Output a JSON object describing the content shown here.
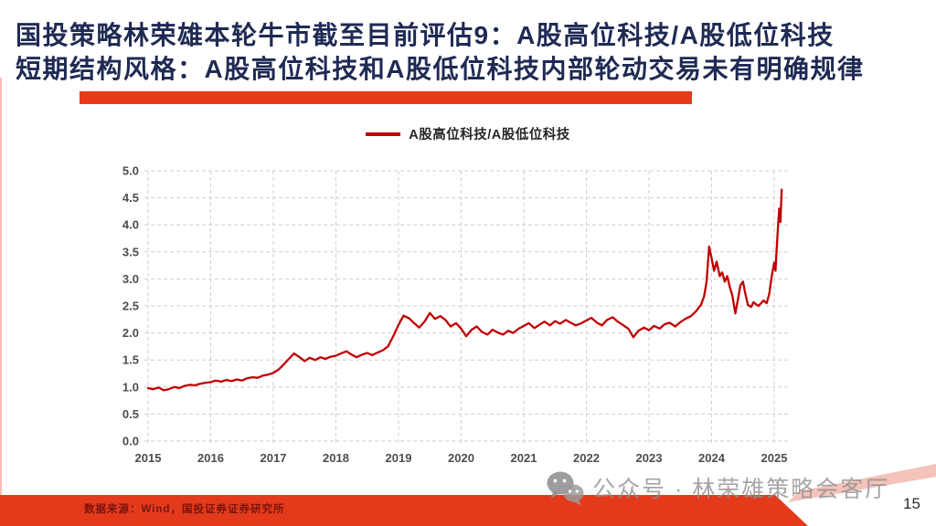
{
  "slide": {
    "title_line1": "国投策略林荣雄本轮牛市截至目前评估9：A股高位科技/A股低位科技",
    "title_line2": "短期结构风格：A股高位科技和A股低位科技内部轮动交易未有明确规律",
    "source_note": "数据来源：Wind，国投证券证券研究所",
    "watermark_text": "公众号 · 林荣雄策略会客厅",
    "page_number": "15",
    "colors": {
      "title_navy": "#1f2a54",
      "accent_red": "#e8391c",
      "footer_red": "#e43a1c",
      "footer_pink": "#f3c0b6",
      "line_red": "#c00000",
      "grid_gray": "#cfcfcf",
      "tick_gray": "#4d4d4d",
      "source_maroon": "#7a140c",
      "watermark_gray": "#8f8f8f"
    }
  },
  "chart_data": {
    "type": "line",
    "title": "",
    "xlabel": "",
    "ylabel": "",
    "xlim": [
      2015,
      2025.2
    ],
    "ylim": [
      0,
      5
    ],
    "x_ticks": [
      2015,
      2016,
      2017,
      2018,
      2019,
      2020,
      2021,
      2022,
      2023,
      2024,
      2025
    ],
    "y_ticks": [
      0,
      0.5,
      1,
      1.5,
      2,
      2.5,
      3,
      3.5,
      4,
      4.5,
      5
    ],
    "grid": "dashed",
    "legend_position": "top-center",
    "series": [
      {
        "name": "A股高位科技/A股低位科技",
        "color": "#c00000",
        "x": [
          2015.0,
          2015.08,
          2015.17,
          2015.25,
          2015.33,
          2015.42,
          2015.5,
          2015.58,
          2015.67,
          2015.75,
          2015.83,
          2015.92,
          2016.0,
          2016.08,
          2016.17,
          2016.25,
          2016.33,
          2016.42,
          2016.5,
          2016.58,
          2016.67,
          2016.75,
          2016.83,
          2016.92,
          2017.0,
          2017.08,
          2017.17,
          2017.25,
          2017.33,
          2017.42,
          2017.5,
          2017.58,
          2017.67,
          2017.75,
          2017.83,
          2017.92,
          2018.0,
          2018.08,
          2018.17,
          2018.25,
          2018.33,
          2018.42,
          2018.5,
          2018.58,
          2018.67,
          2018.75,
          2018.83,
          2018.92,
          2019.0,
          2019.08,
          2019.17,
          2019.25,
          2019.33,
          2019.42,
          2019.5,
          2019.58,
          2019.67,
          2019.75,
          2019.83,
          2019.92,
          2020.0,
          2020.08,
          2020.17,
          2020.25,
          2020.33,
          2020.42,
          2020.5,
          2020.58,
          2020.67,
          2020.75,
          2020.83,
          2020.92,
          2021.0,
          2021.08,
          2021.17,
          2021.25,
          2021.33,
          2021.42,
          2021.5,
          2021.58,
          2021.67,
          2021.75,
          2021.83,
          2021.92,
          2022.0,
          2022.08,
          2022.17,
          2022.25,
          2022.33,
          2022.42,
          2022.5,
          2022.58,
          2022.67,
          2022.75,
          2022.83,
          2022.92,
          2023.0,
          2023.08,
          2023.17,
          2023.25,
          2023.33,
          2023.42,
          2023.5,
          2023.58,
          2023.67,
          2023.75,
          2023.83,
          2023.88,
          2023.92,
          2023.96,
          2024.0,
          2024.04,
          2024.08,
          2024.13,
          2024.17,
          2024.21,
          2024.25,
          2024.29,
          2024.33,
          2024.38,
          2024.42,
          2024.46,
          2024.5,
          2024.54,
          2024.58,
          2024.63,
          2024.67,
          2024.71,
          2024.75,
          2024.79,
          2024.83,
          2024.88,
          2024.92,
          2024.96,
          2025.0,
          2025.02,
          2025.04,
          2025.06,
          2025.08,
          2025.1,
          2025.12
        ],
        "values": [
          0.98,
          0.96,
          0.99,
          0.94,
          0.96,
          1.0,
          0.98,
          1.02,
          1.04,
          1.03,
          1.06,
          1.08,
          1.09,
          1.12,
          1.1,
          1.13,
          1.11,
          1.14,
          1.12,
          1.16,
          1.18,
          1.17,
          1.21,
          1.23,
          1.26,
          1.32,
          1.42,
          1.52,
          1.62,
          1.55,
          1.48,
          1.54,
          1.5,
          1.55,
          1.52,
          1.56,
          1.58,
          1.62,
          1.66,
          1.6,
          1.55,
          1.6,
          1.63,
          1.59,
          1.64,
          1.68,
          1.75,
          1.95,
          2.15,
          2.32,
          2.27,
          2.18,
          2.1,
          2.22,
          2.37,
          2.26,
          2.31,
          2.24,
          2.12,
          2.18,
          2.08,
          1.94,
          2.06,
          2.12,
          2.02,
          1.97,
          2.06,
          2.01,
          1.97,
          2.04,
          2.0,
          2.08,
          2.13,
          2.18,
          2.09,
          2.15,
          2.21,
          2.14,
          2.22,
          2.17,
          2.24,
          2.19,
          2.14,
          2.18,
          2.23,
          2.28,
          2.19,
          2.14,
          2.24,
          2.29,
          2.21,
          2.15,
          2.08,
          1.92,
          2.04,
          2.1,
          2.05,
          2.13,
          2.08,
          2.16,
          2.19,
          2.12,
          2.2,
          2.26,
          2.31,
          2.4,
          2.52,
          2.68,
          2.95,
          3.6,
          3.38,
          3.15,
          3.32,
          3.05,
          3.12,
          2.95,
          3.05,
          2.85,
          2.7,
          2.36,
          2.62,
          2.88,
          2.95,
          2.72,
          2.52,
          2.48,
          2.57,
          2.53,
          2.5,
          2.55,
          2.6,
          2.55,
          2.72,
          3.05,
          3.3,
          3.15,
          3.55,
          3.95,
          4.3,
          4.05,
          4.65
        ]
      }
    ]
  }
}
